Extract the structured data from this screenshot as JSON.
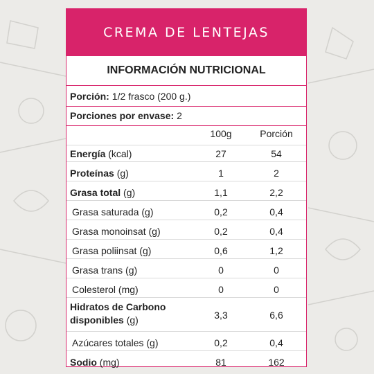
{
  "product": {
    "title": "CREMA DE LENTEJAS"
  },
  "table": {
    "heading": "INFORMACIÓN NUTRICIONAL",
    "serving_label": "Porción:",
    "serving_value": "1/2 frasco (200 g.)",
    "servings_label": "Porciones por envase:",
    "servings_value": "2",
    "col_100g": "100g",
    "col_portion": "Porción",
    "rows": [
      {
        "name": "Energía",
        "unit": "(kcal)",
        "v100": "27",
        "vport": "54",
        "bold": true
      },
      {
        "name": "Proteínas",
        "unit": "(g)",
        "v100": "1",
        "vport": "2",
        "bold": true
      },
      {
        "name": "Grasa total",
        "unit": "(g)",
        "v100": "1,1",
        "vport": "2,2",
        "bold": true
      },
      {
        "name": "Grasa saturada",
        "unit": "(g)",
        "v100": "0,2",
        "vport": "0,4",
        "bold": false
      },
      {
        "name": "Grasa monoinsat",
        "unit": "(g)",
        "v100": "0,2",
        "vport": "0,4",
        "bold": false
      },
      {
        "name": "Grasa poliinsat",
        "unit": "(g)",
        "v100": "0,6",
        "vport": "1,2",
        "bold": false
      },
      {
        "name": "Grasa trans",
        "unit": "(g)",
        "v100": "0",
        "vport": "0",
        "bold": false
      },
      {
        "name": "Colesterol",
        "unit": "(mg)",
        "v100": "0",
        "vport": "0",
        "bold": false
      },
      {
        "name": "Hidratos de Carbono",
        "name2": "disponibles",
        "unit": "(g)",
        "v100": "3,3",
        "vport": "6,6",
        "bold": true
      },
      {
        "name": "Azúcares totales",
        "unit": "(g)",
        "v100": "0,2",
        "vport": "0,4",
        "bold": false
      },
      {
        "name": "Sodio",
        "unit": "(mg)",
        "v100": "81",
        "vport": "162",
        "bold": true
      }
    ]
  },
  "colors": {
    "accent": "#d8236a",
    "background": "#ecebe8"
  }
}
